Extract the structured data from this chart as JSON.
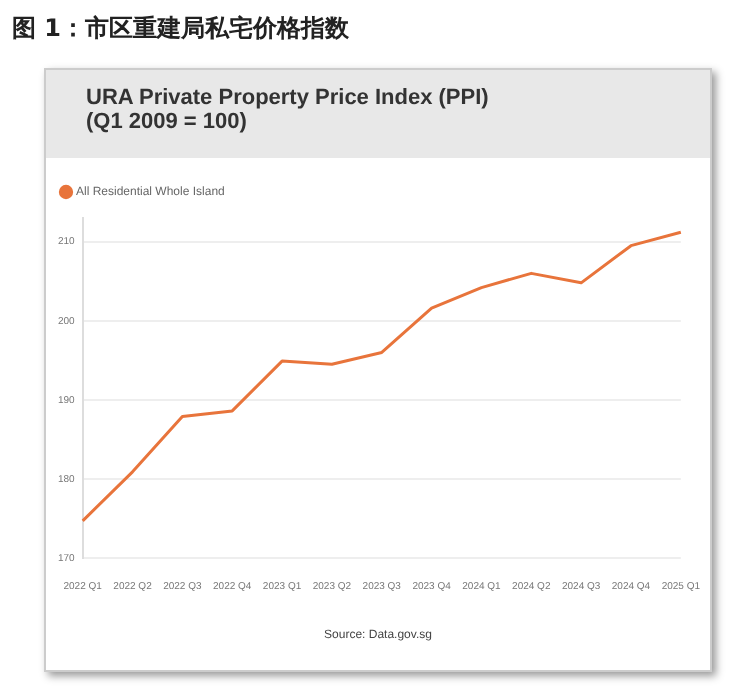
{
  "chart_data": {
    "type": "line",
    "title": "图 1：市区重建局私宅价格指数",
    "subtitle": "URA Private Property Price Index (PPI) (Q1 2009 = 100)",
    "categories": [
      "2022 Q1",
      "2022 Q2",
      "2022 Q3",
      "2022 Q4",
      "2023 Q1",
      "2023 Q2",
      "2023 Q3",
      "2023 Q4",
      "2024 Q1",
      "2024 Q2",
      "2024 Q3",
      "2024 Q4",
      "2025 Q1"
    ],
    "series": [
      {
        "name": "All Residential Whole Island",
        "color": "#e8743b",
        "values": [
          174.7,
          180.9,
          187.9,
          188.6,
          194.9,
          194.5,
          196.0,
          201.6,
          204.2,
          206.0,
          204.8,
          209.5,
          211.2
        ]
      }
    ],
    "ylim": [
      170,
      213
    ],
    "yticks": [
      170,
      180,
      190,
      200,
      210
    ],
    "grid": "y",
    "legend": "top left",
    "marker": "none",
    "annotations": [
      "Source: Data.gov.sg"
    ]
  }
}
